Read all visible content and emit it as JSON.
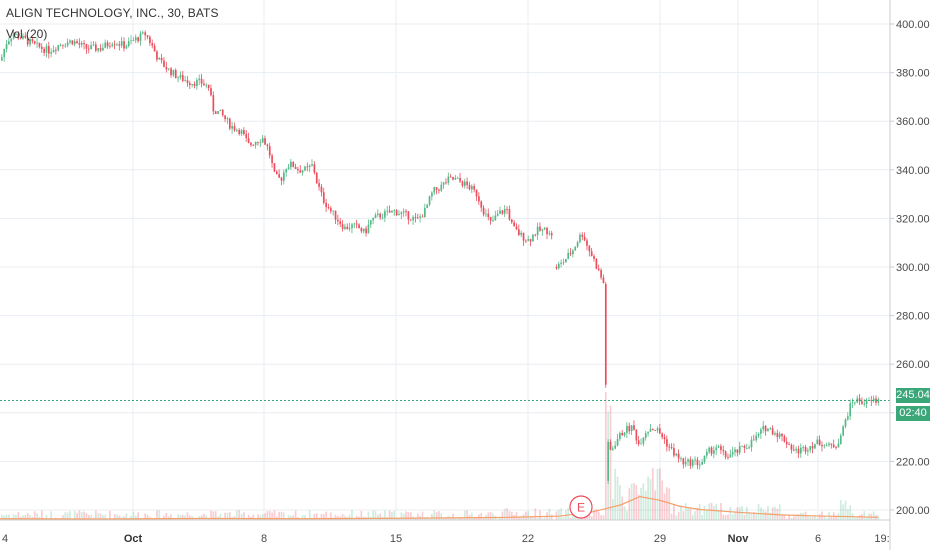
{
  "header": {
    "title": "ALIGN TECHNOLOGY, INC., 30, BATS",
    "indicator": "Vol (20)"
  },
  "colors": {
    "up": "#53b987",
    "down": "#eb4d5c",
    "grid": "#e9eef2",
    "volume_ma": "#f5a06a",
    "last_price_line": "#3aa778"
  },
  "price_tags": {
    "last_price": "245.04",
    "countdown": "02:40"
  },
  "earnings_marker": {
    "label": "E"
  },
  "chart_data": {
    "type": "candlestick",
    "y_axis": {
      "ticks": [
        "400.00",
        "380.00",
        "360.00",
        "340.00",
        "320.00",
        "300.00",
        "280.00",
        "260.00",
        "240.00",
        "220.00",
        "200.00"
      ],
      "range": [
        195,
        407
      ]
    },
    "x_axis": {
      "ticks": [
        "4",
        "Oct",
        "8",
        "15",
        "22",
        "29",
        "Nov",
        "6",
        "19:"
      ]
    },
    "last_price": 245.04,
    "path": [
      [
        0,
        385
      ],
      [
        5,
        392
      ],
      [
        12,
        396
      ],
      [
        22,
        394
      ],
      [
        35,
        391
      ],
      [
        48,
        389
      ],
      [
        60,
        392
      ],
      [
        72,
        393
      ],
      [
        85,
        390
      ],
      [
        100,
        390
      ],
      [
        112,
        393
      ],
      [
        124,
        391
      ],
      [
        136,
        394
      ],
      [
        145,
        396
      ],
      [
        150,
        392
      ],
      [
        158,
        385
      ],
      [
        168,
        381
      ],
      [
        178,
        378
      ],
      [
        190,
        376
      ],
      [
        200,
        376
      ],
      [
        208,
        374
      ],
      [
        212,
        365
      ],
      [
        220,
        363
      ],
      [
        230,
        358
      ],
      [
        240,
        356
      ],
      [
        248,
        350
      ],
      [
        255,
        352
      ],
      [
        262,
        353
      ],
      [
        268,
        348
      ],
      [
        274,
        337
      ],
      [
        280,
        336
      ],
      [
        286,
        342
      ],
      [
        292,
        342
      ],
      [
        298,
        340
      ],
      [
        306,
        340
      ],
      [
        312,
        342
      ],
      [
        316,
        335
      ],
      [
        322,
        328
      ],
      [
        330,
        323
      ],
      [
        338,
        319
      ],
      [
        344,
        316
      ],
      [
        350,
        317
      ],
      [
        358,
        316
      ],
      [
        364,
        314
      ],
      [
        370,
        319
      ],
      [
        378,
        321
      ],
      [
        386,
        322
      ],
      [
        394,
        323
      ],
      [
        400,
        322
      ],
      [
        408,
        321
      ],
      [
        416,
        319
      ],
      [
        424,
        323
      ],
      [
        432,
        331
      ],
      [
        440,
        333
      ],
      [
        448,
        336
      ],
      [
        454,
        336
      ],
      [
        460,
        335
      ],
      [
        468,
        333
      ],
      [
        476,
        330
      ],
      [
        484,
        322
      ],
      [
        490,
        318
      ],
      [
        498,
        322
      ],
      [
        506,
        324
      ],
      [
        512,
        316
      ],
      [
        520,
        313
      ],
      [
        528,
        311
      ],
      [
        536,
        315
      ],
      [
        544,
        315
      ],
      [
        550,
        315
      ],
      [
        555,
        300
      ],
      [
        560,
        301
      ],
      [
        566,
        304
      ],
      [
        572,
        307
      ],
      [
        578,
        312
      ],
      [
        582,
        314
      ],
      [
        586,
        309
      ],
      [
        592,
        304
      ],
      [
        597,
        299
      ],
      [
        603,
        293
      ],
      [
        606,
        230
      ],
      [
        610,
        224
      ],
      [
        616,
        229
      ],
      [
        624,
        233
      ],
      [
        632,
        234
      ],
      [
        638,
        227
      ],
      [
        644,
        232
      ],
      [
        650,
        234
      ],
      [
        656,
        233
      ],
      [
        662,
        230
      ],
      [
        668,
        226
      ],
      [
        676,
        222
      ],
      [
        684,
        219
      ],
      [
        692,
        220
      ],
      [
        700,
        219
      ],
      [
        708,
        224
      ],
      [
        716,
        226
      ],
      [
        724,
        222
      ],
      [
        732,
        223
      ],
      [
        740,
        225
      ],
      [
        748,
        227
      ],
      [
        756,
        230
      ],
      [
        764,
        234
      ],
      [
        770,
        233
      ],
      [
        778,
        231
      ],
      [
        786,
        228
      ],
      [
        794,
        224
      ],
      [
        802,
        225
      ],
      [
        812,
        227
      ],
      [
        820,
        228
      ],
      [
        828,
        226
      ],
      [
        836,
        227
      ],
      [
        842,
        233
      ],
      [
        846,
        239
      ],
      [
        852,
        245
      ],
      [
        860,
        245
      ],
      [
        866,
        244
      ],
      [
        872,
        245
      ],
      [
        878,
        245
      ]
    ],
    "volume_ma_path": [
      [
        0,
        196.4
      ],
      [
        100,
        196.3
      ],
      [
        200,
        196.5
      ],
      [
        300,
        196.4
      ],
      [
        400,
        196.6
      ],
      [
        500,
        196.9
      ],
      [
        560,
        197.5
      ],
      [
        590,
        199.0
      ],
      [
        605,
        200.5
      ],
      [
        620,
        202.0
      ],
      [
        640,
        205.5
      ],
      [
        660,
        204.0
      ],
      [
        680,
        201.5
      ],
      [
        700,
        200.2
      ],
      [
        740,
        199.0
      ],
      [
        780,
        198.0
      ],
      [
        820,
        197.5
      ],
      [
        860,
        197.2
      ],
      [
        878,
        197.0
      ]
    ]
  }
}
